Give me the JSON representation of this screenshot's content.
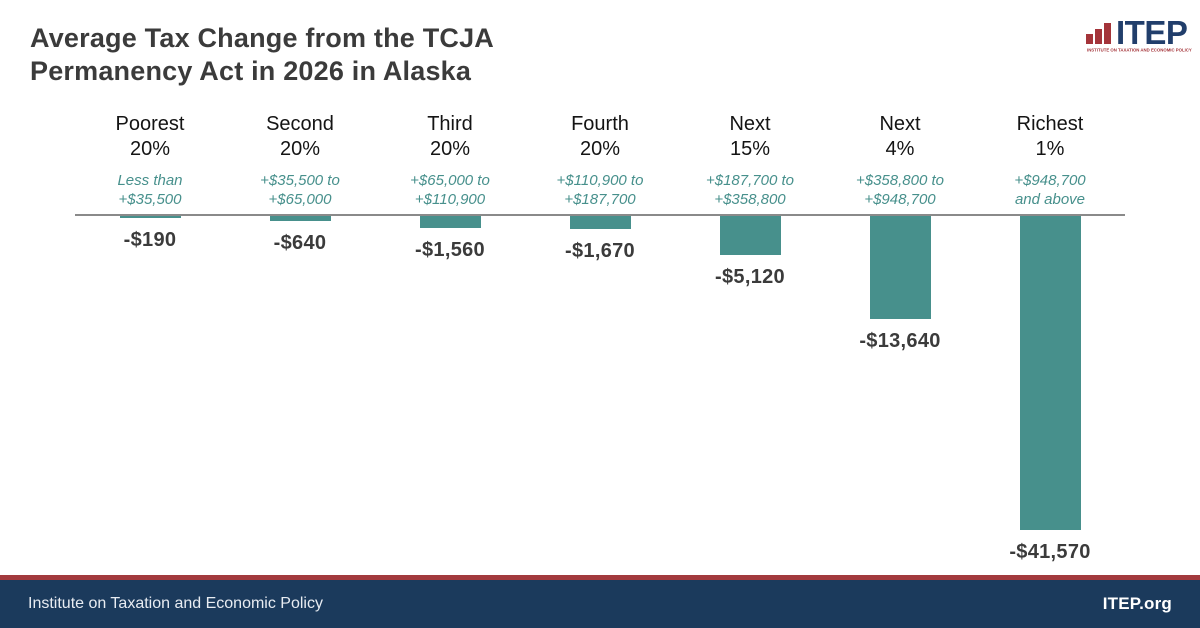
{
  "header": {
    "title_line1": "Average Tax Change from the TCJA",
    "title_line2": "Permanency Act in 2026 in Alaska",
    "logo": {
      "name": "ITEP",
      "tagline": "INSTITUTE ON TAXATION AND ECONOMIC POLICY",
      "navy_color": "#213e6b",
      "red_color": "#a4343a"
    }
  },
  "chart_data": {
    "type": "bar",
    "title": "Average Tax Change from the TCJA Permanency Act in 2026 in Alaska",
    "categories": [
      "Poorest 20%",
      "Second 20%",
      "Third 20%",
      "Fourth 20%",
      "Next 15%",
      "Next 4%",
      "Richest 1%"
    ],
    "category_lines": [
      [
        "Poorest",
        "20%"
      ],
      [
        "Second",
        "20%"
      ],
      [
        "Third",
        "20%"
      ],
      [
        "Fourth",
        "20%"
      ],
      [
        "Next",
        "15%"
      ],
      [
        "Next",
        "4%"
      ],
      [
        "Richest",
        "1%"
      ]
    ],
    "income_ranges": [
      [
        "Less than",
        "+$35,500"
      ],
      [
        "+$35,500 to",
        "+$65,000"
      ],
      [
        "+$65,000 to",
        "+$110,900"
      ],
      [
        "+$110,900 to",
        "+$187,700"
      ],
      [
        "+$187,700 to",
        "+$358,800"
      ],
      [
        "+$358,800 to",
        "+$948,700"
      ],
      [
        "+$948,700",
        "and above"
      ]
    ],
    "values": [
      -190,
      -640,
      -1560,
      -1670,
      -5120,
      -13640,
      -41570
    ],
    "value_labels": [
      "-$190",
      "-$640",
      "-$1,560",
      "-$1,670",
      "-$5,120",
      "-$13,640",
      "-$41,570"
    ],
    "xlabel": "",
    "ylabel": "",
    "ylim": [
      -45000,
      0
    ],
    "grid": false,
    "legend": "none",
    "bar_color": "#47908c",
    "income_text_color": "#47908c",
    "axis_line_color": "#8a8a8a",
    "value_label_color": "#3b3b3b"
  },
  "footer": {
    "left_text": "Institute on Taxation and Economic Policy",
    "right_text": "ITEP.org",
    "background_color": "#1b3a5c",
    "accent_line_color": "#a23a3d"
  }
}
